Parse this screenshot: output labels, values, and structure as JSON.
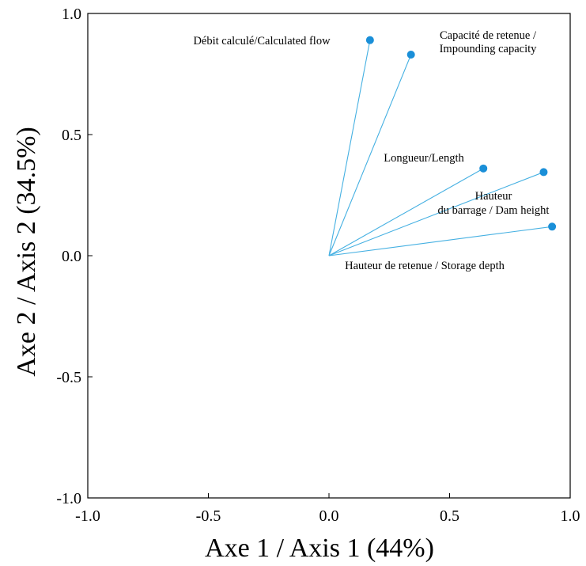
{
  "chart_data": {
    "type": "scatter",
    "subtype": "correlation-circle-vectors",
    "xlabel": "Axe 1 / Axis 1 (44%)",
    "ylabel": "Axe 2 / Axis 2  (34.5%)",
    "xlim": [
      -1.0,
      1.0
    ],
    "ylim": [
      -1.0,
      1.0
    ],
    "xticks": [
      "-1.0",
      "-0.5",
      "0.0",
      "0.5",
      "1.0"
    ],
    "yticks": [
      "-1.0",
      "-0.5",
      "0.0",
      "0.5",
      "1.0"
    ],
    "grid": false,
    "legend": "none",
    "origin": [
      0.0,
      0.0
    ],
    "vectors": [
      {
        "label": [
          "Débit calculé/Calculated flow"
        ],
        "x": 0.17,
        "y": 0.89
      },
      {
        "label": [
          "Capacité de retenue /",
          "Impounding capacity"
        ],
        "x": 0.34,
        "y": 0.83
      },
      {
        "label": [
          "Longueur/Length"
        ],
        "x": 0.64,
        "y": 0.36
      },
      {
        "label": [
          "Hauteur",
          "du barrage / Dam height"
        ],
        "x": 0.89,
        "y": 0.345
      },
      {
        "label": [
          "Hauteur de retenue / Storage depth"
        ],
        "x": 0.925,
        "y": 0.12
      }
    ]
  },
  "colors": {
    "vector": "#45b0e2",
    "point": "#1a8fd8",
    "axis": "#000000"
  }
}
